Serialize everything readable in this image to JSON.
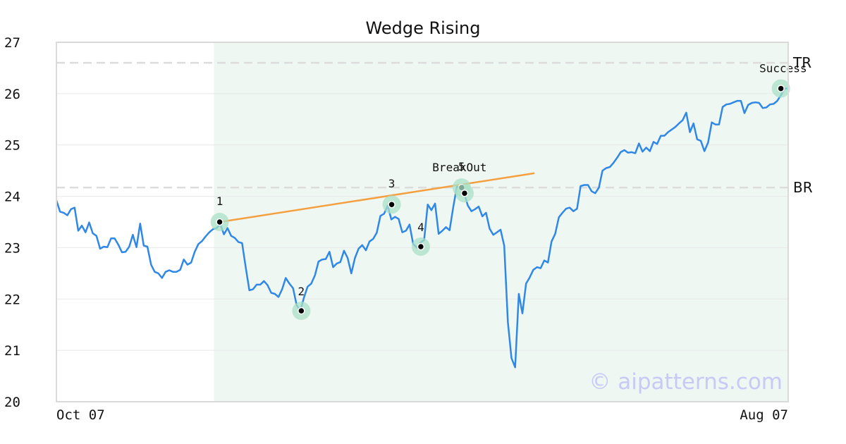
{
  "chart_data": {
    "type": "line",
    "title": "Wedge Rising",
    "xlabel": "",
    "ylabel": "",
    "ylim": [
      20,
      27
    ],
    "y_ticks": [
      20,
      21,
      22,
      23,
      24,
      25,
      26,
      27
    ],
    "y_tick_labels": [
      "20",
      "21",
      "22",
      "23",
      "24",
      "25",
      "26",
      "27"
    ],
    "x_ticks": [
      0,
      251
    ],
    "x_tick_labels": [
      "Oct 07",
      "Aug 07"
    ],
    "xlim": [
      0,
      251
    ],
    "grid": true,
    "pattern_region": [
      54,
      251
    ],
    "levels": [
      {
        "name": "TR",
        "value": 26.6
      },
      {
        "name": "BR",
        "value": 24.17
      }
    ],
    "series": [
      {
        "color": "#2f87e6",
        "values": [
          23.92,
          23.7,
          23.68,
          23.63,
          23.75,
          23.78,
          23.33,
          23.43,
          23.3,
          23.49,
          23.28,
          23.23,
          22.98,
          23.02,
          23.01,
          23.18,
          23.18,
          23.06,
          22.91,
          22.92,
          23.02,
          23.25,
          23.01,
          23.47,
          23.04,
          23.02,
          22.67,
          22.53,
          22.5,
          22.41,
          22.53,
          22.56,
          22.53,
          22.53,
          22.57,
          22.77,
          22.67,
          22.71,
          22.92,
          23.07,
          23.13,
          23.22,
          23.3,
          23.36,
          23.38,
          23.46,
          23.26,
          23.38,
          23.23,
          23.19,
          23.11,
          23.09,
          22.62,
          22.17,
          22.19,
          22.28,
          22.28,
          22.35,
          22.27,
          22.12,
          22.1,
          22.04,
          22.19,
          22.41,
          22.3,
          22.21,
          21.88,
          21.77,
          22.03,
          22.24,
          22.3,
          22.46,
          22.73,
          22.77,
          22.78,
          22.92,
          22.62,
          22.69,
          22.72,
          22.94,
          22.8,
          22.5,
          22.8,
          22.98,
          23.05,
          22.95,
          23.12,
          23.17,
          23.29,
          23.62,
          23.66,
          23.82,
          23.55,
          23.6,
          23.56,
          23.3,
          23.33,
          23.45,
          23.07,
          23.0,
          23.1,
          23.15,
          23.84,
          23.73,
          23.86,
          23.27,
          23.33,
          23.4,
          23.34,
          23.79,
          24.19,
          24.16,
          24.06,
          23.82,
          23.71,
          23.75,
          23.8,
          23.61,
          23.68,
          23.37,
          23.25,
          23.3,
          23.35,
          23.04,
          21.55,
          20.85,
          20.67,
          22.1,
          21.72,
          22.3,
          22.42,
          22.57,
          22.62,
          22.6,
          22.75,
          22.71,
          23.12,
          23.27,
          23.59,
          23.68,
          23.76,
          23.78,
          23.71,
          23.76,
          24.2,
          24.22,
          24.22,
          24.1,
          24.06,
          24.17,
          24.5,
          24.55,
          24.57,
          24.65,
          24.75,
          24.86,
          24.9,
          24.85,
          24.86,
          24.84,
          25.03,
          24.87,
          24.95,
          24.88,
          25.06,
          25.02,
          25.18,
          25.18,
          25.25,
          25.3,
          25.35,
          25.42,
          25.48,
          25.63,
          25.25,
          25.42,
          25.11,
          25.08,
          24.88,
          25.05,
          25.44,
          25.4,
          25.4,
          25.74,
          25.79,
          25.8,
          25.83,
          25.86,
          25.86,
          25.62,
          25.78,
          25.82,
          25.83,
          25.82,
          25.72,
          25.73,
          25.79,
          25.8,
          25.86,
          25.97,
          26.1,
          26.1
        ],
        "x_start": 0,
        "x_end": 251
      }
    ],
    "pivots": [
      {
        "label": "1",
        "x": 56,
        "y": 23.5
      },
      {
        "label": "2",
        "x": 84,
        "y": 21.77
      },
      {
        "label": "3",
        "x": 115,
        "y": 23.84
      },
      {
        "label": "4",
        "x": 125,
        "y": 23.02
      },
      {
        "label": "5",
        "x": 139,
        "y": 24.17
      },
      {
        "label": "",
        "x": 140,
        "y": 24.06
      }
    ],
    "annotations": [
      {
        "text": "BreakOut",
        "x": 139,
        "y": 24.17
      },
      {
        "text": "Success",
        "x": 250,
        "y": 26.1
      }
    ],
    "trendline": {
      "color": "#f4a041",
      "x0": 56,
      "y0": 23.5,
      "x1": 164,
      "y1": 24.45
    },
    "watermark": "© aipatterns.com"
  }
}
